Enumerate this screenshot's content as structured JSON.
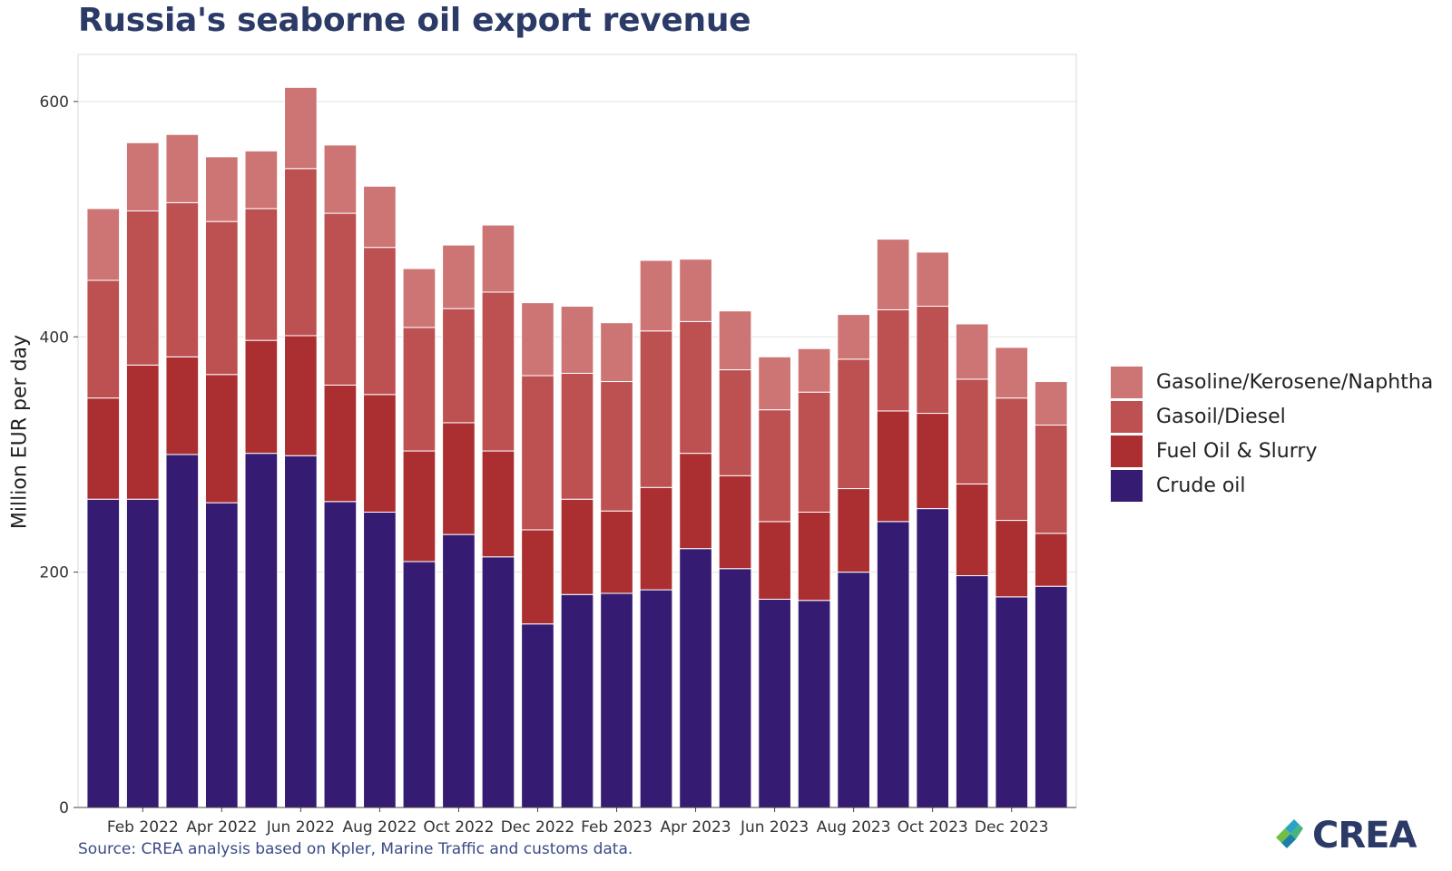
{
  "title": "Russia's seaborne oil export revenue",
  "source": "Source: CREA analysis based on Kpler, Marine Traffic and customs data.",
  "logo_text": "CREA",
  "chart_data": {
    "type": "bar",
    "stacked": true,
    "title": "Russia's seaborne oil export revenue",
    "xlabel": "",
    "ylabel": "Million EUR per day",
    "ylim": [
      0,
      640
    ],
    "yticks": [
      0,
      200,
      400,
      600
    ],
    "grid": true,
    "legend_position": "right",
    "x_tick_labels": [
      "Feb 2022",
      "Apr 2022",
      "Jun 2022",
      "Aug 2022",
      "Oct 2022",
      "Dec 2022",
      "Feb 2023",
      "Apr 2023",
      "Jun 2023",
      "Aug 2023",
      "Oct 2023",
      "Dec 2023"
    ],
    "categories": [
      "2022-01",
      "2022-02",
      "2022-03",
      "2022-04",
      "2022-05",
      "2022-06",
      "2022-07",
      "2022-08",
      "2022-09",
      "2022-10",
      "2022-11",
      "2022-12",
      "2023-01",
      "2023-02",
      "2023-03",
      "2023-04",
      "2023-05",
      "2023-06",
      "2023-07",
      "2023-08",
      "2023-09",
      "2023-10",
      "2023-11",
      "2023-12",
      "2024-01"
    ],
    "series": [
      {
        "name": "Crude oil",
        "color": "#361b72",
        "values": [
          262,
          262,
          300,
          259,
          301,
          299,
          260,
          251,
          209,
          232,
          213,
          156,
          181,
          182,
          185,
          220,
          203,
          177,
          176,
          200,
          243,
          254,
          197,
          179,
          188
        ]
      },
      {
        "name": "Fuel Oil & Slurry",
        "color": "#ab2f31",
        "values": [
          86,
          114,
          83,
          109,
          96,
          102,
          99,
          100,
          94,
          95,
          90,
          80,
          81,
          70,
          87,
          81,
          79,
          66,
          75,
          71,
          94,
          81,
          78,
          65,
          45
        ]
      },
      {
        "name": "Gasoil/Diesel",
        "color": "#bd5050",
        "values": [
          100,
          131,
          131,
          130,
          112,
          142,
          146,
          125,
          105,
          97,
          135,
          131,
          107,
          110,
          133,
          112,
          90,
          95,
          102,
          110,
          86,
          91,
          89,
          104,
          92
        ]
      },
      {
        "name": "Gasoline/Kerosene/Naphtha",
        "color": "#cd7575",
        "values": [
          61,
          58,
          58,
          55,
          49,
          69,
          58,
          52,
          50,
          54,
          57,
          62,
          57,
          50,
          60,
          53,
          50,
          45,
          37,
          38,
          60,
          46,
          47,
          43,
          37
        ]
      }
    ]
  },
  "legend": [
    {
      "label": "Gasoline/Kerosene/Naphtha",
      "color": "#cd7575"
    },
    {
      "label": "Gasoil/Diesel",
      "color": "#bd5050"
    },
    {
      "label": "Fuel Oil & Slurry",
      "color": "#ab2f31"
    },
    {
      "label": "Crude oil",
      "color": "#361b72"
    }
  ]
}
